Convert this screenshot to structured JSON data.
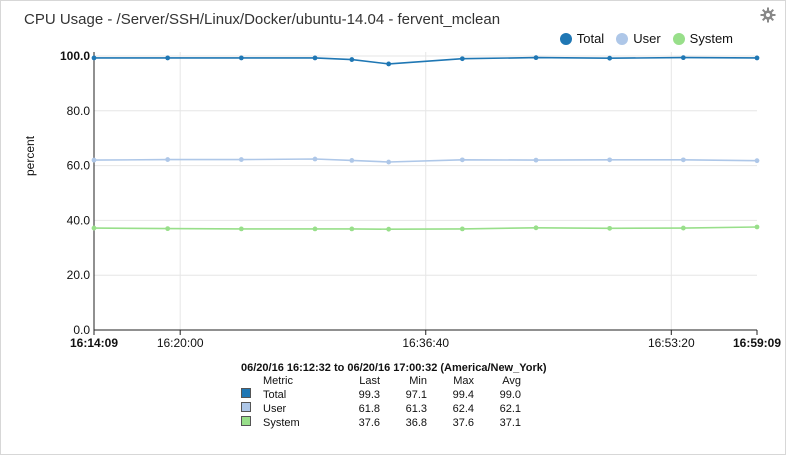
{
  "title": "CPU Usage - /Server/SSH/Linux/Docker/ubuntu-14.04 - fervent_mclean",
  "icons": {
    "settings": "gear-icon"
  },
  "legend": [
    {
      "name": "Total",
      "color": "#1f77b4"
    },
    {
      "name": "User",
      "color": "#aec7e8"
    },
    {
      "name": "System",
      "color": "#98df8a"
    }
  ],
  "chart_data": {
    "type": "line",
    "ylabel": "percent",
    "ylim": [
      0,
      100
    ],
    "yticks": [
      "0.0",
      "20.0",
      "40.0",
      "60.0",
      "80.0",
      "100.0"
    ],
    "xticks": [
      {
        "t": 0,
        "label": "16:14:09",
        "bold": true
      },
      {
        "t": 351,
        "label": "16:20:00",
        "bold": false
      },
      {
        "t": 1351,
        "label": "16:36:40",
        "bold": false
      },
      {
        "t": 2351,
        "label": "16:53:20",
        "bold": false
      },
      {
        "t": 2700,
        "label": "16:59:09",
        "bold": true
      }
    ],
    "x_range_seconds": [
      0,
      2700
    ],
    "grid": true,
    "legend_position": "top-right",
    "series": [
      {
        "name": "Total",
        "color": "#1f77b4",
        "x": [
          0,
          300,
          600,
          900,
          1050,
          1200,
          1500,
          1800,
          2100,
          2400,
          2700
        ],
        "y": [
          99.3,
          99.3,
          99.3,
          99.3,
          98.7,
          97.1,
          99.0,
          99.4,
          99.2,
          99.4,
          99.3
        ]
      },
      {
        "name": "User",
        "color": "#aec7e8",
        "x": [
          0,
          300,
          600,
          900,
          1050,
          1200,
          1500,
          1800,
          2100,
          2400,
          2700
        ],
        "y": [
          62.0,
          62.2,
          62.2,
          62.4,
          61.9,
          61.3,
          62.1,
          62.0,
          62.1,
          62.1,
          61.8
        ]
      },
      {
        "name": "System",
        "color": "#98df8a",
        "x": [
          0,
          300,
          600,
          900,
          1050,
          1200,
          1500,
          1800,
          2100,
          2400,
          2700
        ],
        "y": [
          37.2,
          37.0,
          36.9,
          36.9,
          36.9,
          36.8,
          36.9,
          37.3,
          37.1,
          37.2,
          37.6
        ]
      }
    ]
  },
  "summary": {
    "range": "06/20/16 16:12:32 to 06/20/16 17:00:32 (America/New_York)",
    "headers": [
      "Metric",
      "Last",
      "Min",
      "Max",
      "Avg"
    ],
    "rows": [
      {
        "metric": "Total",
        "color": "#1f77b4",
        "last": "99.3",
        "min": "97.1",
        "max": "99.4",
        "avg": "99.0"
      },
      {
        "metric": "User",
        "color": "#aec7e8",
        "last": "61.8",
        "min": "61.3",
        "max": "62.4",
        "avg": "62.1"
      },
      {
        "metric": "System",
        "color": "#98df8a",
        "last": "37.6",
        "min": "36.8",
        "max": "37.6",
        "avg": "37.1"
      }
    ]
  }
}
